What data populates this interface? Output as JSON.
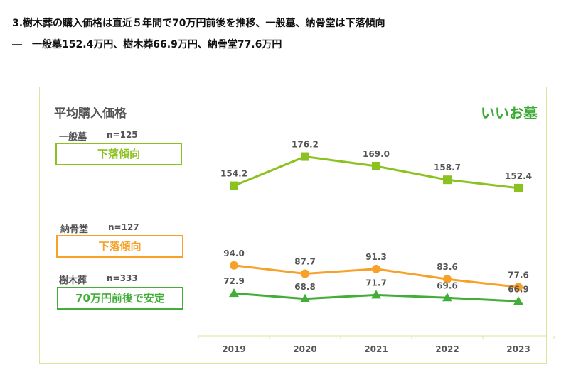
{
  "headline": "3.樹木葬の購入価格は直近５年間で70万円前後を推移、一般墓、納骨堂は下落傾向",
  "subline": "―　一般墓152.4万円、樹木葬66.9万円、納骨堂77.6万円",
  "panel": {
    "title": "平均購入価格",
    "logo": "いいお墓",
    "logo_color": "#3aaa35"
  },
  "groups": [
    {
      "name": "一般墓",
      "n": "n=125",
      "tag": "下落傾向",
      "color": "#8cc21f"
    },
    {
      "name": "納骨堂",
      "n": "n=127",
      "tag": "下落傾向",
      "color": "#f7a12a"
    },
    {
      "name": "樹木葬",
      "n": "n=333",
      "tag": "70万円前後で安定",
      "color": "#43ad3a"
    }
  ],
  "chart_data": {
    "type": "line",
    "categories": [
      "2019",
      "2020",
      "2021",
      "2022",
      "2023"
    ],
    "series": [
      {
        "name": "一般墓",
        "marker": "square",
        "color": "#8cc21f",
        "values": [
          154.2,
          176.2,
          169.0,
          158.7,
          152.4
        ]
      },
      {
        "name": "納骨堂",
        "marker": "circle",
        "color": "#f7a12a",
        "values": [
          94.0,
          87.7,
          91.3,
          83.6,
          77.6
        ]
      },
      {
        "name": "樹木葬",
        "marker": "triangle",
        "color": "#43ad3a",
        "values": [
          72.9,
          68.8,
          71.7,
          69.6,
          66.9
        ]
      }
    ],
    "grid": false
  }
}
